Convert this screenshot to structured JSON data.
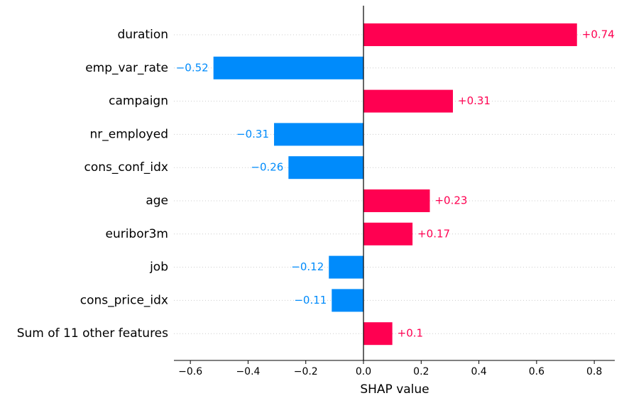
{
  "chart_data": {
    "type": "bar",
    "orientation": "horizontal",
    "x_label": "SHAP value",
    "categories": [
      "duration",
      "emp_var_rate",
      "campaign",
      "nr_employed",
      "cons_conf_idx",
      "age",
      "euribor3m",
      "job",
      "cons_price_idx",
      "Sum of 11 other features"
    ],
    "values": [
      0.74,
      -0.52,
      0.31,
      -0.31,
      -0.26,
      0.23,
      0.17,
      -0.12,
      -0.11,
      0.1
    ],
    "value_labels": [
      "+0.74",
      "−0.52",
      "+0.31",
      "−0.31",
      "−0.26",
      "+0.23",
      "+0.17",
      "−0.12",
      "−0.11",
      "+0.1"
    ],
    "colors": {
      "positive": "#ff0051",
      "negative": "#008bfb"
    },
    "xlim": [
      -0.657,
      0.871
    ],
    "xticks": [
      {
        "value": -0.6,
        "label": "−0.6"
      },
      {
        "value": -0.4,
        "label": "−0.4"
      },
      {
        "value": -0.2,
        "label": "−0.2"
      },
      {
        "value": 0,
        "label": "0.0"
      },
      0.2,
      0.4,
      0.6,
      0.8
    ],
    "grid": true
  }
}
